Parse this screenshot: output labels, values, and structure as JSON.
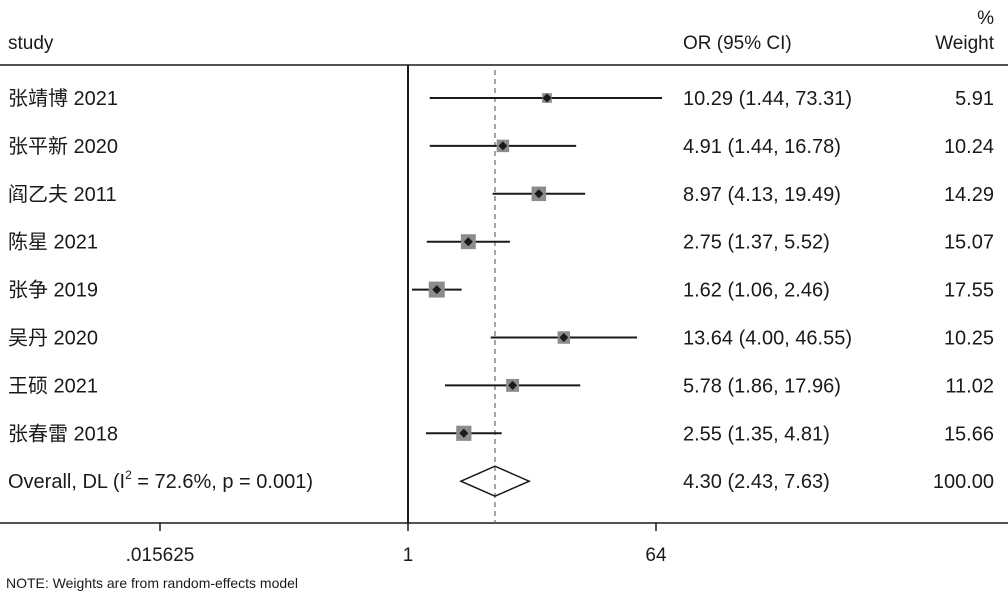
{
  "header": {
    "study_label": "study",
    "or_label": "OR (95% CI)",
    "weight_label_top": "%",
    "weight_label_bottom": "Weight"
  },
  "note": "NOTE: Weights are from random-effects model",
  "chart_data": {
    "type": "forest",
    "x_scale": "log",
    "x_ticks": [
      0.015625,
      1,
      64
    ],
    "x_tick_labels": [
      ".015625",
      "1",
      "64"
    ],
    "reference_line": 1,
    "overall_line": 4.3,
    "rows": [
      {
        "study": "张靖博 2021",
        "or": 10.29,
        "lo": 1.44,
        "hi": 73.31,
        "or_text": "10.29 (1.44, 73.31)",
        "weight": 5.91,
        "weight_text": "5.91"
      },
      {
        "study": "张平新 2020",
        "or": 4.91,
        "lo": 1.44,
        "hi": 16.78,
        "or_text": "4.91 (1.44, 16.78)",
        "weight": 10.24,
        "weight_text": "10.24"
      },
      {
        "study": "阎乙夫 2011",
        "or": 8.97,
        "lo": 4.13,
        "hi": 19.49,
        "or_text": "8.97 (4.13, 19.49)",
        "weight": 14.29,
        "weight_text": "14.29"
      },
      {
        "study": "陈星 2021",
        "or": 2.75,
        "lo": 1.37,
        "hi": 5.52,
        "or_text": "2.75 (1.37, 5.52)",
        "weight": 15.07,
        "weight_text": "15.07"
      },
      {
        "study": "张争 2019",
        "or": 1.62,
        "lo": 1.06,
        "hi": 2.46,
        "or_text": "1.62 (1.06, 2.46)",
        "weight": 17.55,
        "weight_text": "17.55"
      },
      {
        "study": "吴丹 2020",
        "or": 13.64,
        "lo": 4.0,
        "hi": 46.55,
        "or_text": "13.64 (4.00, 46.55)",
        "weight": 10.25,
        "weight_text": "10.25"
      },
      {
        "study": "王硕 2021",
        "or": 5.78,
        "lo": 1.86,
        "hi": 17.96,
        "or_text": "5.78 (1.86, 17.96)",
        "weight": 11.02,
        "weight_text": "11.02"
      },
      {
        "study": "张春雷 2018",
        "or": 2.55,
        "lo": 1.35,
        "hi": 4.81,
        "or_text": "2.55 (1.35, 4.81)",
        "weight": 15.66,
        "weight_text": "15.66"
      }
    ],
    "overall": {
      "label_prefix": "Overall, DL (I",
      "label_sup": "2",
      "label_suffix": " = 72.6%, p = 0.001)",
      "or": 4.3,
      "lo": 2.43,
      "hi": 7.63,
      "or_text": "4.30 (2.43, 7.63)",
      "weight_text": "100.00"
    },
    "colors": {
      "text": "#1a1a1a",
      "box": "#8c8c8c",
      "line": "#1a1a1a",
      "dashed": "#666666"
    }
  }
}
